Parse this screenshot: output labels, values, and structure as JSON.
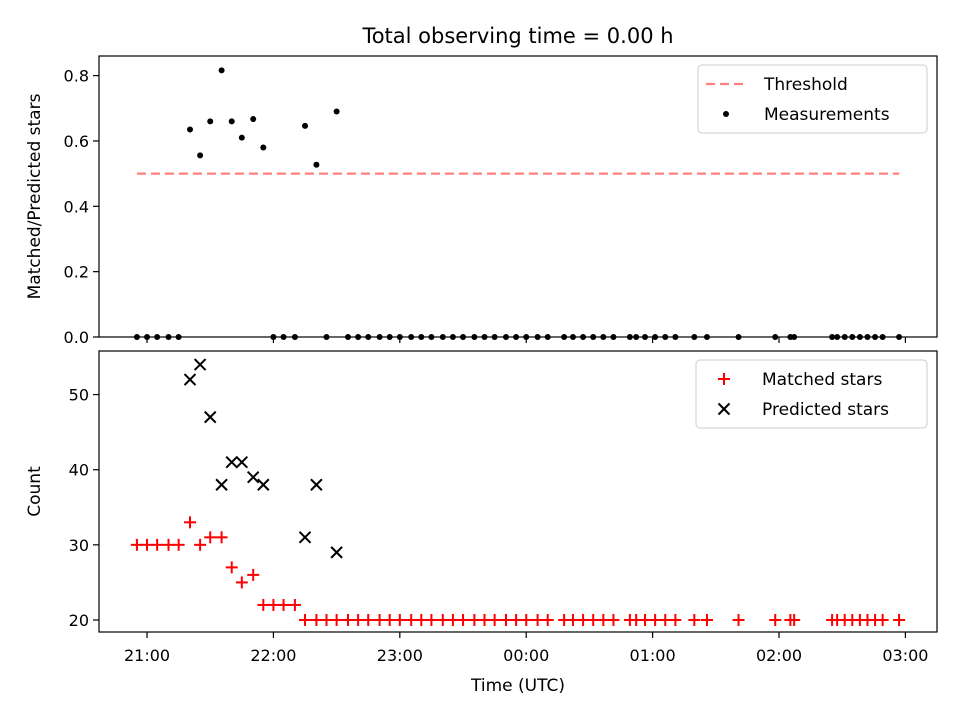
{
  "chart_data": {
    "title": "Total observing time = 0.00 h",
    "xlabel": "Time (UTC)",
    "x_ticks": [
      "21:00",
      "22:00",
      "23:00",
      "00:00",
      "01:00",
      "02:00",
      "03:00"
    ],
    "x_tick_hours": [
      21,
      22,
      23,
      24,
      25,
      26,
      27
    ],
    "xlim_hours": [
      20.62,
      27.25
    ],
    "panels": [
      {
        "type": "scatter",
        "ylabel": "Matched/Predicted stars",
        "ylim": [
          0,
          0.86
        ],
        "yticks": [
          0.0,
          0.2,
          0.4,
          0.6,
          0.8
        ],
        "ytick_labels": [
          "0.0",
          "0.2",
          "0.4",
          "0.6",
          "0.8"
        ],
        "legend_position": "top-right",
        "series": [
          {
            "name": "Threshold",
            "kind": "dashed-line",
            "color": "#ff7f7f",
            "x": [
              20.92,
              26.95
            ],
            "y": [
              0.5,
              0.5
            ]
          },
          {
            "name": "Measurements",
            "kind": "dot",
            "color": "#000000",
            "x": [
              20.92,
              21.0,
              21.08,
              21.17,
              21.25,
              21.34,
              21.42,
              21.5,
              21.59,
              21.67,
              21.75,
              21.84,
              21.92,
              22.0,
              22.08,
              22.17,
              22.25,
              22.34,
              22.42,
              22.5,
              22.59,
              22.67,
              22.75,
              22.84,
              22.92,
              23.0,
              23.09,
              23.17,
              23.25,
              23.34,
              23.42,
              23.5,
              23.59,
              23.67,
              23.75,
              23.84,
              23.92,
              24.0,
              24.09,
              24.17,
              24.3,
              24.37,
              24.45,
              24.53,
              24.61,
              24.69,
              24.82,
              24.87,
              24.94,
              25.02,
              25.1,
              25.18,
              25.33,
              25.43,
              25.68,
              25.97,
              26.09,
              26.12,
              26.42,
              26.46,
              26.52,
              26.58,
              26.64,
              26.7,
              26.76,
              26.82,
              26.95
            ],
            "y": [
              0.0,
              0.0,
              0.0,
              0.0,
              0.0,
              0.635,
              0.556,
              0.66,
              0.816,
              0.66,
              0.61,
              0.667,
              0.58,
              0.0,
              0.0,
              0.0,
              0.646,
              0.527,
              0.0,
              0.69,
              0.0,
              0.0,
              0.0,
              0.0,
              0.0,
              0.0,
              0.0,
              0.0,
              0.0,
              0.0,
              0.0,
              0.0,
              0.0,
              0.0,
              0.0,
              0.0,
              0.0,
              0.0,
              0.0,
              0.0,
              0.0,
              0.0,
              0.0,
              0.0,
              0.0,
              0.0,
              0.0,
              0.0,
              0.0,
              0.0,
              0.0,
              0.0,
              0.0,
              0.0,
              0.0,
              0.0,
              0.0,
              0.0,
              0.0,
              0.0,
              0.0,
              0.0,
              0.0,
              0.0,
              0.0,
              0.0,
              0.0
            ]
          }
        ]
      },
      {
        "type": "scatter",
        "ylabel": "Count",
        "ylim": [
          18.4,
          55.8
        ],
        "yticks": [
          20,
          30,
          40,
          50
        ],
        "ytick_labels": [
          "20",
          "30",
          "40",
          "50"
        ],
        "legend_position": "top-right",
        "series": [
          {
            "name": "Matched stars",
            "kind": "plus",
            "color": "#ff0000",
            "x": [
              20.92,
              21.0,
              21.08,
              21.17,
              21.25,
              21.34,
              21.42,
              21.5,
              21.59,
              21.67,
              21.75,
              21.84,
              21.92,
              22.0,
              22.08,
              22.17,
              22.25,
              22.34,
              22.42,
              22.5,
              22.59,
              22.67,
              22.75,
              22.84,
              22.92,
              23.0,
              23.09,
              23.17,
              23.25,
              23.34,
              23.42,
              23.5,
              23.59,
              23.67,
              23.75,
              23.84,
              23.92,
              24.0,
              24.09,
              24.17,
              24.3,
              24.37,
              24.45,
              24.53,
              24.61,
              24.69,
              24.82,
              24.87,
              24.94,
              25.02,
              25.1,
              25.18,
              25.33,
              25.43,
              25.68,
              25.97,
              26.09,
              26.12,
              26.42,
              26.46,
              26.52,
              26.58,
              26.64,
              26.7,
              26.76,
              26.82,
              26.95
            ],
            "y": [
              30,
              30,
              30,
              30,
              30,
              33,
              30,
              31,
              31,
              27,
              25,
              26,
              22,
              22,
              22,
              22,
              20,
              20,
              20,
              20,
              20,
              20,
              20,
              20,
              20,
              20,
              20,
              20,
              20,
              20,
              20,
              20,
              20,
              20,
              20,
              20,
              20,
              20,
              20,
              20,
              20,
              20,
              20,
              20,
              20,
              20,
              20,
              20,
              20,
              20,
              20,
              20,
              20,
              20,
              20,
              20,
              20,
              20,
              20,
              20,
              20,
              20,
              20,
              20,
              20,
              20,
              20
            ]
          },
          {
            "name": "Predicted stars",
            "kind": "x",
            "color": "#000000",
            "x": [
              21.34,
              21.42,
              21.5,
              21.59,
              21.67,
              21.75,
              21.84,
              21.92,
              22.25,
              22.34,
              22.5
            ],
            "y": [
              52,
              54,
              47,
              38,
              41,
              41,
              39,
              38,
              31,
              38,
              29
            ]
          }
        ]
      }
    ]
  }
}
